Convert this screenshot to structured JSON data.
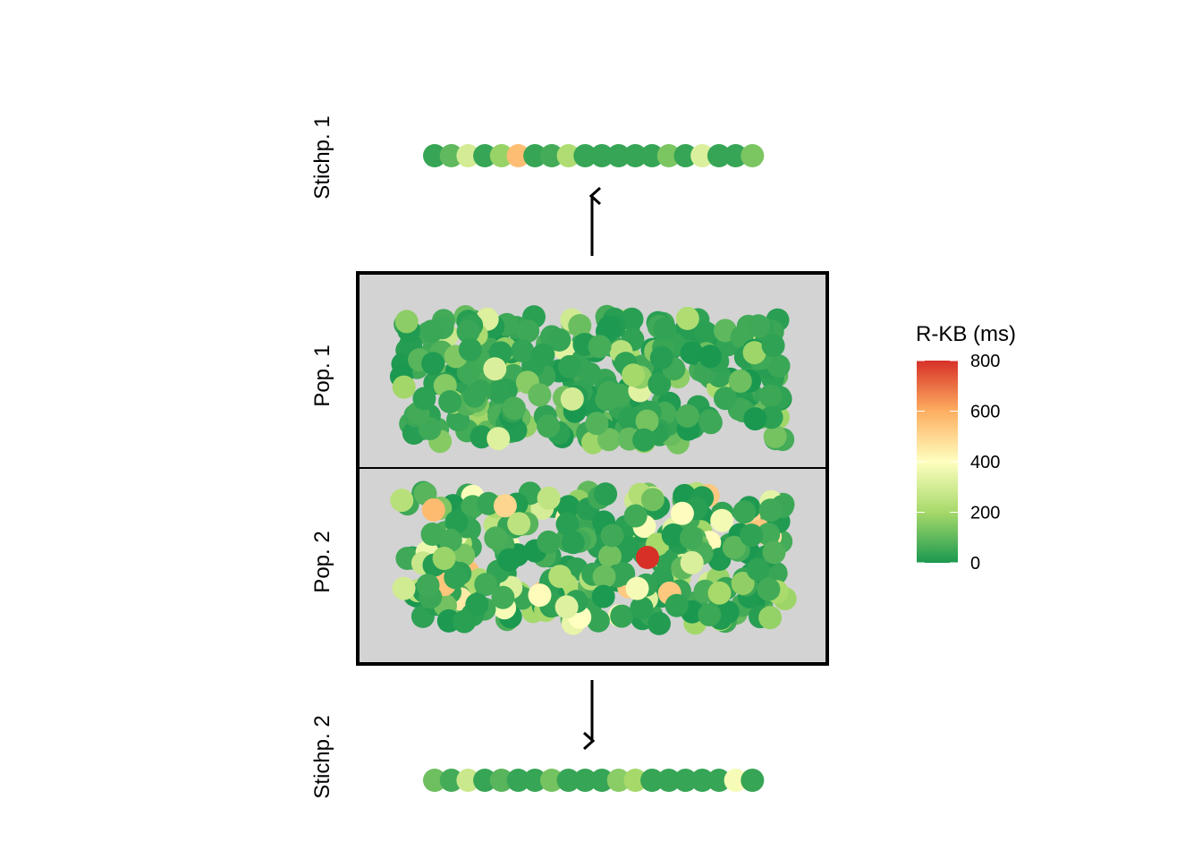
{
  "chart_data": {
    "type": "scatter",
    "rows": [
      {
        "key": "sample1",
        "label": "Stichp. 1"
      },
      {
        "key": "pop1",
        "label": "Pop. 1"
      },
      {
        "key": "pop2",
        "label": "Pop. 2"
      },
      {
        "key": "sample2",
        "label": "Stichp. 2"
      }
    ],
    "color_scale": {
      "title": "R-KB (ms)",
      "min": 0,
      "max": 800,
      "ticks": [
        0,
        200,
        400,
        600,
        800
      ],
      "stops": [
        {
          "value": 0,
          "color": "#1a9850"
        },
        {
          "value": 200,
          "color": "#a6d96a"
        },
        {
          "value": 400,
          "color": "#ffffbf"
        },
        {
          "value": 600,
          "color": "#fdae61"
        },
        {
          "value": 800,
          "color": "#d73027"
        }
      ]
    },
    "sample1_values": [
      40,
      100,
      300,
      40,
      180,
      560,
      40,
      60,
      220,
      40,
      40,
      40,
      40,
      40,
      140,
      40,
      320,
      40,
      40,
      140
    ],
    "sample2_values": [
      120,
      60,
      280,
      40,
      90,
      40,
      40,
      130,
      40,
      40,
      40,
      160,
      200,
      40,
      40,
      40,
      40,
      40,
      380,
      40
    ],
    "population_distribution": {
      "pop1": {
        "n": 300,
        "typical_range": [
          0,
          350
        ]
      },
      "pop2": {
        "n": 300,
        "typical_range": [
          0,
          550
        ],
        "max": 800
      }
    },
    "arrows": [
      "up",
      "down"
    ]
  }
}
